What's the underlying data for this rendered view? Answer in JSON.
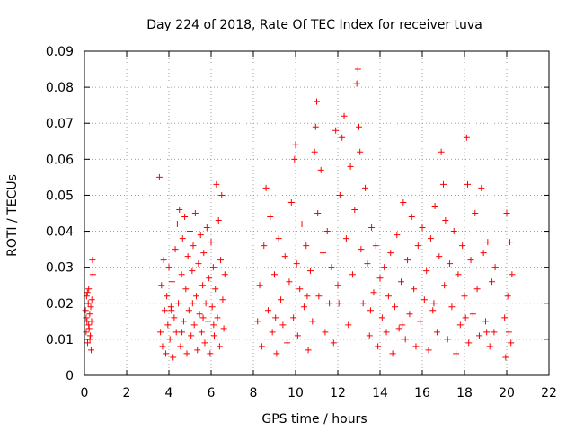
{
  "chart_data": {
    "type": "scatter",
    "title": "Day 224 of 2018, Rate Of TEC Index for receiver tuva",
    "xlabel": "GPS time / hours",
    "ylabel": "ROTI / TECUs",
    "xlim": [
      0,
      22
    ],
    "ylim": [
      0,
      0.09
    ],
    "x_ticks": [
      0,
      2,
      4,
      6,
      8,
      10,
      12,
      14,
      16,
      18,
      20,
      22
    ],
    "x_tick_labels": [
      "0",
      "2",
      "4",
      "6",
      "8",
      "10",
      "12",
      "14",
      "16",
      "18",
      "20",
      "22"
    ],
    "y_ticks": [
      0,
      0.01,
      0.02,
      0.03,
      0.04,
      0.05,
      0.06,
      0.07,
      0.08,
      0.09
    ],
    "y_tick_labels": [
      "0",
      "0.01",
      "0.02",
      "0.03",
      "0.04",
      "0.05",
      "0.06",
      "0.07",
      "0.08",
      "0.09"
    ],
    "grid": true,
    "marker": "+",
    "color": "#ff0000",
    "series": [
      {
        "name": "ROTI",
        "points": [
          [
            0.05,
            0.018
          ],
          [
            0.08,
            0.012
          ],
          [
            0.1,
            0.022
          ],
          [
            0.12,
            0.015
          ],
          [
            0.15,
            0.009
          ],
          [
            0.18,
            0.02
          ],
          [
            0.2,
            0.024
          ],
          [
            0.22,
            0.013
          ],
          [
            0.25,
            0.017
          ],
          [
            0.28,
            0.011
          ],
          [
            0.3,
            0.019
          ],
          [
            0.32,
            0.007
          ],
          [
            0.35,
            0.021
          ],
          [
            0.38,
            0.032
          ],
          [
            0.4,
            0.028
          ],
          [
            0.08,
            0.016
          ],
          [
            0.14,
            0.023
          ],
          [
            0.2,
            0.014
          ],
          [
            0.26,
            0.01
          ],
          [
            0.34,
            0.015
          ],
          [
            3.55,
            0.055
          ],
          [
            3.6,
            0.012
          ],
          [
            3.65,
            0.025
          ],
          [
            3.7,
            0.008
          ],
          [
            3.75,
            0.032
          ],
          [
            3.8,
            0.018
          ],
          [
            3.85,
            0.006
          ],
          [
            3.9,
            0.022
          ],
          [
            3.95,
            0.014
          ],
          [
            4.0,
            0.03
          ],
          [
            4.05,
            0.01
          ],
          [
            4.1,
            0.019
          ],
          [
            4.15,
            0.026
          ],
          [
            4.2,
            0.005
          ],
          [
            4.25,
            0.016
          ],
          [
            4.3,
            0.035
          ],
          [
            4.35,
            0.012
          ],
          [
            4.4,
            0.042
          ],
          [
            4.45,
            0.02
          ],
          [
            4.5,
            0.046
          ],
          [
            4.55,
            0.008
          ],
          [
            4.6,
            0.028
          ],
          [
            4.65,
            0.038
          ],
          [
            4.7,
            0.015
          ],
          [
            4.75,
            0.044
          ],
          [
            4.8,
            0.024
          ],
          [
            4.85,
            0.006
          ],
          [
            4.9,
            0.033
          ],
          [
            4.95,
            0.018
          ],
          [
            5.0,
            0.04
          ],
          [
            5.05,
            0.011
          ],
          [
            5.1,
            0.029
          ],
          [
            5.15,
            0.036
          ],
          [
            5.2,
            0.014
          ],
          [
            5.25,
            0.045
          ],
          [
            5.3,
            0.022
          ],
          [
            5.35,
            0.007
          ],
          [
            5.4,
            0.031
          ],
          [
            5.45,
            0.017
          ],
          [
            5.5,
            0.039
          ],
          [
            5.55,
            0.012
          ],
          [
            5.6,
            0.025
          ],
          [
            5.65,
            0.034
          ],
          [
            5.7,
            0.009
          ],
          [
            5.75,
            0.02
          ],
          [
            5.8,
            0.041
          ],
          [
            5.85,
            0.015
          ],
          [
            5.9,
            0.027
          ],
          [
            5.95,
            0.006
          ],
          [
            6.0,
            0.037
          ],
          [
            6.05,
            0.019
          ],
          [
            6.1,
            0.03
          ],
          [
            6.15,
            0.011
          ],
          [
            6.2,
            0.024
          ],
          [
            6.25,
            0.053
          ],
          [
            6.3,
            0.016
          ],
          [
            6.35,
            0.043
          ],
          [
            6.4,
            0.008
          ],
          [
            6.45,
            0.032
          ],
          [
            6.5,
            0.05
          ],
          [
            6.55,
            0.021
          ],
          [
            6.6,
            0.013
          ],
          [
            6.65,
            0.028
          ],
          [
            4.12,
            0.018
          ],
          [
            4.62,
            0.012
          ],
          [
            5.12,
            0.02
          ],
          [
            5.62,
            0.016
          ],
          [
            6.12,
            0.014
          ],
          [
            8.2,
            0.015
          ],
          [
            8.3,
            0.025
          ],
          [
            8.4,
            0.008
          ],
          [
            8.5,
            0.036
          ],
          [
            8.6,
            0.052
          ],
          [
            8.7,
            0.018
          ],
          [
            8.8,
            0.044
          ],
          [
            8.9,
            0.012
          ],
          [
            9.0,
            0.028
          ],
          [
            9.1,
            0.006
          ],
          [
            9.2,
            0.038
          ],
          [
            9.3,
            0.021
          ],
          [
            9.4,
            0.014
          ],
          [
            9.5,
            0.033
          ],
          [
            9.6,
            0.009
          ],
          [
            9.7,
            0.026
          ],
          [
            9.8,
            0.048
          ],
          [
            9.9,
            0.016
          ],
          [
            9.95,
            0.06
          ],
          [
            10.0,
            0.064
          ],
          [
            10.05,
            0.031
          ],
          [
            10.1,
            0.011
          ],
          [
            10.2,
            0.024
          ],
          [
            10.3,
            0.042
          ],
          [
            10.4,
            0.019
          ],
          [
            10.5,
            0.036
          ],
          [
            10.6,
            0.007
          ],
          [
            10.7,
            0.029
          ],
          [
            10.8,
            0.015
          ],
          [
            10.9,
            0.062
          ],
          [
            10.95,
            0.069
          ],
          [
            11.0,
            0.076
          ],
          [
            11.05,
            0.045
          ],
          [
            11.1,
            0.022
          ],
          [
            11.2,
            0.057
          ],
          [
            11.3,
            0.034
          ],
          [
            11.4,
            0.012
          ],
          [
            11.5,
            0.04
          ],
          [
            11.6,
            0.02
          ],
          [
            11.7,
            0.03
          ],
          [
            11.8,
            0.009
          ],
          [
            11.9,
            0.068
          ],
          [
            12.0,
            0.025
          ],
          [
            12.1,
            0.05
          ],
          [
            12.2,
            0.066
          ],
          [
            12.3,
            0.072
          ],
          [
            12.4,
            0.038
          ],
          [
            12.5,
            0.014
          ],
          [
            12.6,
            0.058
          ],
          [
            12.7,
            0.028
          ],
          [
            12.8,
            0.046
          ],
          [
            12.9,
            0.081
          ],
          [
            12.95,
            0.085
          ],
          [
            13.0,
            0.069
          ],
          [
            13.05,
            0.062
          ],
          [
            13.1,
            0.035
          ],
          [
            13.2,
            0.02
          ],
          [
            13.3,
            0.052
          ],
          [
            13.4,
            0.031
          ],
          [
            13.5,
            0.011
          ],
          [
            13.6,
            0.041
          ],
          [
            13.7,
            0.023
          ],
          [
            13.8,
            0.036
          ],
          [
            13.9,
            0.008
          ],
          [
            14.0,
            0.027
          ],
          [
            14.1,
            0.016
          ],
          [
            14.2,
            0.03
          ],
          [
            14.3,
            0.012
          ],
          [
            14.4,
            0.022
          ],
          [
            14.5,
            0.034
          ],
          [
            14.6,
            0.006
          ],
          [
            14.7,
            0.019
          ],
          [
            14.8,
            0.039
          ],
          [
            14.9,
            0.013
          ],
          [
            15.0,
            0.026
          ],
          [
            15.1,
            0.048
          ],
          [
            15.2,
            0.01
          ],
          [
            15.3,
            0.032
          ],
          [
            15.4,
            0.017
          ],
          [
            15.5,
            0.044
          ],
          [
            15.6,
            0.024
          ],
          [
            15.7,
            0.008
          ],
          [
            15.8,
            0.036
          ],
          [
            15.9,
            0.015
          ],
          [
            16.0,
            0.041
          ],
          [
            16.1,
            0.021
          ],
          [
            16.2,
            0.029
          ],
          [
            16.3,
            0.007
          ],
          [
            16.4,
            0.038
          ],
          [
            16.5,
            0.018
          ],
          [
            16.6,
            0.047
          ],
          [
            16.7,
            0.012
          ],
          [
            16.8,
            0.033
          ],
          [
            16.9,
            0.062
          ],
          [
            17.0,
            0.053
          ],
          [
            17.05,
            0.025
          ],
          [
            17.1,
            0.043
          ],
          [
            17.2,
            0.01
          ],
          [
            17.3,
            0.031
          ],
          [
            17.4,
            0.019
          ],
          [
            17.5,
            0.04
          ],
          [
            17.6,
            0.006
          ],
          [
            17.7,
            0.028
          ],
          [
            17.8,
            0.014
          ],
          [
            17.9,
            0.036
          ],
          [
            18.0,
            0.022
          ],
          [
            18.1,
            0.066
          ],
          [
            18.15,
            0.053
          ],
          [
            18.2,
            0.009
          ],
          [
            18.3,
            0.032
          ],
          [
            18.4,
            0.017
          ],
          [
            18.5,
            0.045
          ],
          [
            18.6,
            0.024
          ],
          [
            18.7,
            0.011
          ],
          [
            18.8,
            0.052
          ],
          [
            18.9,
            0.034
          ],
          [
            19.0,
            0.015
          ],
          [
            19.1,
            0.037
          ],
          [
            19.2,
            0.008
          ],
          [
            19.3,
            0.026
          ],
          [
            19.4,
            0.012
          ],
          [
            19.45,
            0.03
          ],
          [
            19.9,
            0.016
          ],
          [
            19.95,
            0.005
          ],
          [
            20.0,
            0.045
          ],
          [
            20.05,
            0.022
          ],
          [
            20.1,
            0.012
          ],
          [
            20.15,
            0.037
          ],
          [
            20.2,
            0.009
          ],
          [
            20.25,
            0.028
          ],
          [
            9.05,
            0.016
          ],
          [
            10.55,
            0.022
          ],
          [
            12.05,
            0.02
          ],
          [
            13.55,
            0.018
          ],
          [
            15.05,
            0.014
          ],
          [
            16.55,
            0.02
          ],
          [
            18.05,
            0.016
          ],
          [
            19.05,
            0.012
          ]
        ]
      }
    ]
  }
}
